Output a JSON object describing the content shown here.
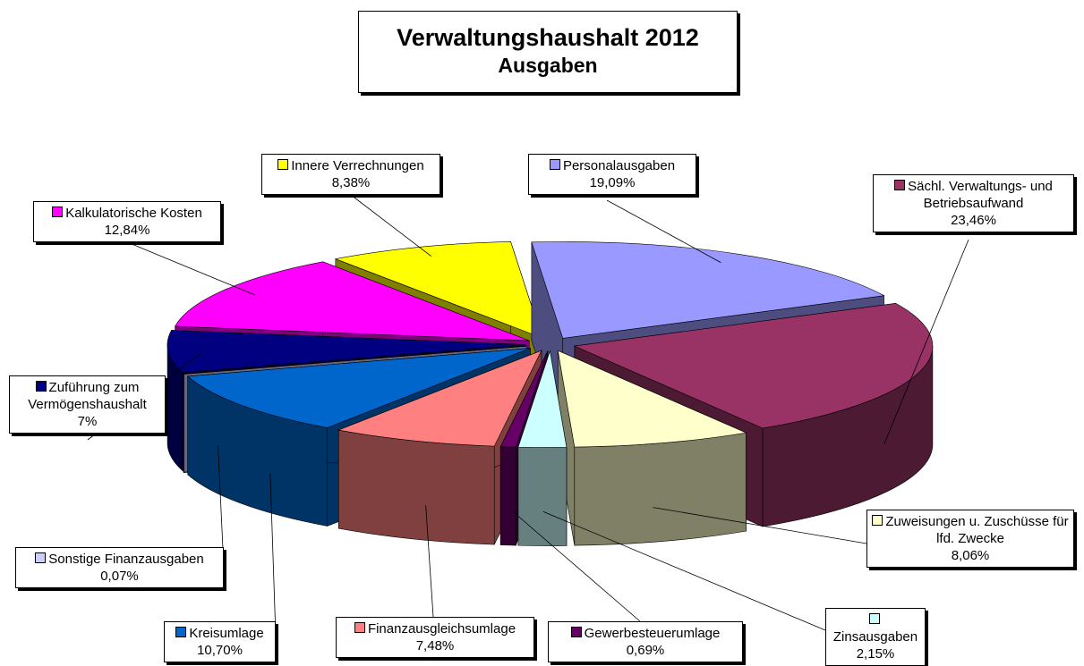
{
  "chart_data": {
    "type": "pie",
    "title": "Verwaltungshaushalt 2012",
    "subtitle": "Ausgaben",
    "categories": [
      "Personalausgaben",
      "Sächl. Verwaltungs- und Betriebsaufwand",
      "Zuweisungen u. Zuschüsse für lfd. Zwecke",
      "Zinsausgaben",
      "Gewerbesteuerumlage",
      "Finanzausgleichsumlage",
      "Kreisumlage",
      "Sonstige Finanzausgaben",
      "Zuführung zum Vermögenshaushalt",
      "Kalkulatorische Kosten",
      "Innere Verrechnungen"
    ],
    "values": [
      19.09,
      23.46,
      8.06,
      2.15,
      0.69,
      7.48,
      10.7,
      0.07,
      7,
      12.84,
      8.38
    ],
    "value_labels": [
      "19,09%",
      "23,46%",
      "8,06%",
      "2,15%",
      "0,69%",
      "7,48%",
      "10,70%",
      "0,07%",
      "7%",
      "12,84%",
      "8,38%"
    ],
    "colors": [
      "#9999ff",
      "#993366",
      "#ffffcc",
      "#ccffff",
      "#660066",
      "#ff8080",
      "#0066cc",
      "#ccccff",
      "#000080",
      "#ff00ff",
      "#ffff00"
    ]
  }
}
